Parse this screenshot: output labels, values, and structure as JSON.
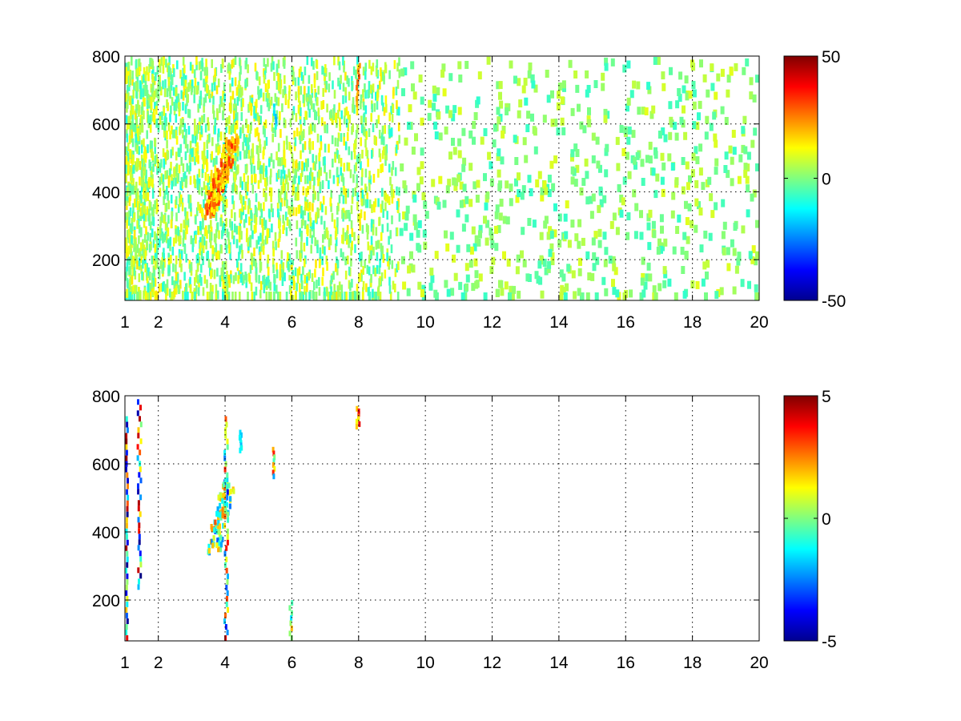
{
  "chart_data": [
    {
      "type": "heatmap",
      "title": "",
      "xlabel": "",
      "ylabel": "",
      "xlim": [
        1,
        20
      ],
      "ylim": [
        80,
        800
      ],
      "xticks": [
        1,
        2,
        4,
        6,
        8,
        10,
        12,
        14,
        16,
        18,
        20
      ],
      "yticks": [
        200,
        400,
        600,
        800
      ],
      "grid": true,
      "colormap": "jet",
      "colorbar": {
        "range": [
          -50,
          50
        ],
        "ticks": [
          -50,
          0,
          50
        ]
      },
      "features": [
        {
          "x_range": [
            1,
            9.2
          ],
          "y_range": [
            80,
            800
          ],
          "value_range": [
            -10,
            15
          ],
          "note": "dense vertical streaks"
        },
        {
          "x_range": [
            9.2,
            20
          ],
          "y_range": [
            80,
            800
          ],
          "value_range": [
            -8,
            10
          ],
          "note": "sparse scattered cells"
        },
        {
          "x_range": [
            3.5,
            4.2
          ],
          "y_range": [
            340,
            560
          ],
          "value_range": [
            10,
            35
          ],
          "note": "diagonal ridge"
        },
        {
          "x_range": [
            5.9,
            6.0
          ],
          "y_range": [
            80,
            200
          ],
          "value_range": [
            -30,
            20
          ],
          "note": "column"
        },
        {
          "x_range": [
            5.4,
            5.5
          ],
          "y_range": [
            580,
            660
          ],
          "value_range": [
            -20,
            0
          ],
          "note": "column"
        },
        {
          "x_range": [
            7.9,
            8.0
          ],
          "y_range": [
            650,
            780
          ],
          "value_range": [
            15,
            30
          ],
          "note": "column"
        }
      ]
    },
    {
      "type": "heatmap",
      "title": "",
      "xlabel": "",
      "ylabel": "",
      "xlim": [
        1,
        20
      ],
      "ylim": [
        80,
        800
      ],
      "xticks": [
        1,
        2,
        4,
        6,
        8,
        10,
        12,
        14,
        16,
        18,
        20
      ],
      "yticks": [
        200,
        400,
        600,
        800
      ],
      "grid": true,
      "colormap": "jet",
      "colorbar": {
        "range": [
          -5,
          5
        ],
        "ticks": [
          -5,
          0,
          5
        ]
      },
      "features": [
        {
          "x_range": [
            3.6,
            4.1
          ],
          "y_range": [
            350,
            560
          ],
          "value_range": [
            -3,
            3
          ],
          "note": "diagonal ridge"
        },
        {
          "x_range": [
            3.95,
            4.05
          ],
          "y_range": [
            80,
            740
          ],
          "value_range": [
            -4,
            4
          ],
          "note": "column"
        },
        {
          "x_range": [
            1.0,
            1.05
          ],
          "y_range": [
            80,
            740
          ],
          "value_range": [
            -5,
            5
          ],
          "note": "column"
        },
        {
          "x_range": [
            1.35,
            1.45
          ],
          "y_range": [
            230,
            790
          ],
          "value_range": [
            -5,
            5
          ],
          "note": "column"
        },
        {
          "x_range": [
            5.9,
            6.0
          ],
          "y_range": [
            80,
            200
          ],
          "value_range": [
            -2,
            2
          ],
          "note": "column"
        },
        {
          "x_range": [
            5.4,
            5.45
          ],
          "y_range": [
            560,
            650
          ],
          "value_range": [
            -4,
            4
          ],
          "note": "column"
        },
        {
          "x_range": [
            7.9,
            8.0
          ],
          "y_range": [
            710,
            770
          ],
          "value_range": [
            1,
            4
          ],
          "note": "column"
        },
        {
          "x_range": [
            4.4,
            4.5
          ],
          "y_range": [
            640,
            700
          ],
          "value_range": [
            -2,
            -1
          ],
          "note": "column"
        }
      ]
    }
  ]
}
